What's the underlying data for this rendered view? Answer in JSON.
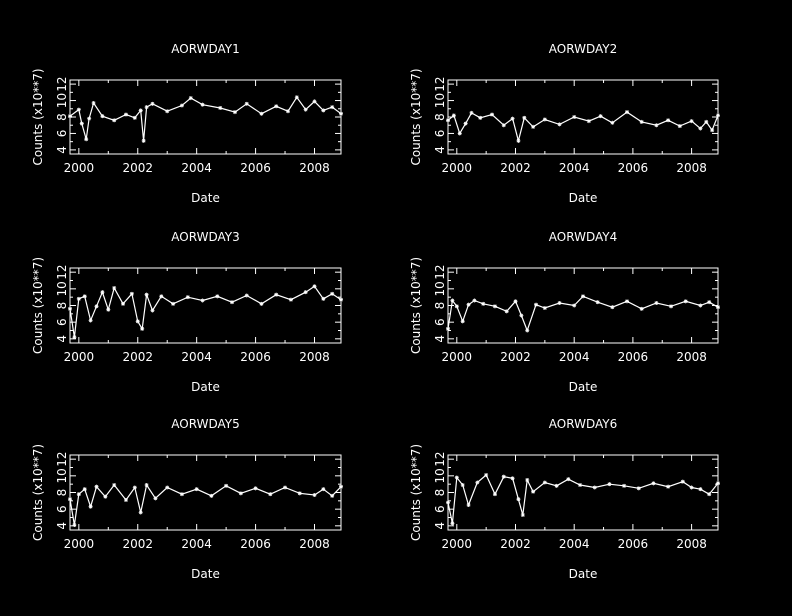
{
  "colors": {
    "background": "#000000",
    "foreground": "#ffffff"
  },
  "chart_data": [
    {
      "type": "line",
      "title": "AORWDAY1",
      "xlabel": "Date",
      "ylabel": "Counts (x10**7)",
      "x_ticks": [
        "2000",
        "2002",
        "2004",
        "2006",
        "2008"
      ],
      "y_ticks": [
        "4",
        "6",
        "8",
        "10",
        "12"
      ],
      "xlim": [
        1999.7,
        2008.9
      ],
      "ylim": [
        3.5,
        12.5
      ],
      "grid": false,
      "x": [
        1999.7,
        2000.0,
        2000.1,
        2000.25,
        2000.35,
        2000.5,
        2000.8,
        2001.2,
        2001.6,
        2001.9,
        2002.1,
        2002.2,
        2002.3,
        2002.5,
        2003.0,
        2003.5,
        2003.8,
        2004.2,
        2004.8,
        2005.3,
        2005.7,
        2006.2,
        2006.7,
        2007.1,
        2007.4,
        2007.7,
        2008.0,
        2008.3,
        2008.6,
        2008.9
      ],
      "values": [
        8.1,
        8.9,
        7.2,
        5.3,
        7.8,
        9.7,
        8.1,
        7.6,
        8.3,
        7.9,
        8.8,
        5.1,
        9.2,
        9.6,
        8.7,
        9.4,
        10.3,
        9.5,
        9.1,
        8.6,
        9.6,
        8.4,
        9.3,
        8.7,
        10.4,
        8.9,
        9.9,
        8.8,
        9.2,
        8.4
      ]
    },
    {
      "type": "line",
      "title": "AORWDAY2",
      "xlabel": "Date",
      "ylabel": "Counts (x10**7)",
      "x_ticks": [
        "2000",
        "2002",
        "2004",
        "2006",
        "2008"
      ],
      "y_ticks": [
        "4",
        "6",
        "8",
        "10",
        "12"
      ],
      "xlim": [
        1999.7,
        2008.9
      ],
      "ylim": [
        3.5,
        12.5
      ],
      "grid": false,
      "x": [
        1999.7,
        1999.9,
        2000.1,
        2000.3,
        2000.5,
        2000.8,
        2001.2,
        2001.6,
        2001.9,
        2002.1,
        2002.3,
        2002.6,
        2003.0,
        2003.5,
        2004.0,
        2004.5,
        2004.9,
        2005.3,
        2005.8,
        2006.3,
        2006.8,
        2007.2,
        2007.6,
        2008.0,
        2008.3,
        2008.5,
        2008.7,
        2008.9
      ],
      "values": [
        7.6,
        8.2,
        6.0,
        7.2,
        8.5,
        7.9,
        8.3,
        7.0,
        7.8,
        5.1,
        7.9,
        6.8,
        7.7,
        7.1,
        8.0,
        7.5,
        8.1,
        7.3,
        8.6,
        7.4,
        7.0,
        7.6,
        6.9,
        7.5,
        6.6,
        7.4,
        6.4,
        8.2
      ]
    },
    {
      "type": "line",
      "title": "AORWDAY3",
      "xlabel": "Date",
      "ylabel": "Counts (x10**7)",
      "x_ticks": [
        "2000",
        "2002",
        "2004",
        "2006",
        "2008"
      ],
      "y_ticks": [
        "4",
        "6",
        "8",
        "10",
        "12"
      ],
      "xlim": [
        1999.7,
        2008.9
      ],
      "ylim": [
        3.5,
        12.5
      ],
      "grid": false,
      "x": [
        1999.7,
        1999.85,
        2000.0,
        2000.2,
        2000.4,
        2000.6,
        2000.8,
        2001.0,
        2001.2,
        2001.5,
        2001.8,
        2002.0,
        2002.15,
        2002.3,
        2002.5,
        2002.8,
        2003.2,
        2003.7,
        2004.2,
        2004.7,
        2005.2,
        2005.7,
        2006.2,
        2006.7,
        2007.2,
        2007.7,
        2008.0,
        2008.3,
        2008.6,
        2008.9
      ],
      "values": [
        7.6,
        4.2,
        8.8,
        9.1,
        6.2,
        7.9,
        9.6,
        7.5,
        10.1,
        8.2,
        9.4,
        6.1,
        5.2,
        9.3,
        7.4,
        9.1,
        8.2,
        9.0,
        8.6,
        9.1,
        8.4,
        9.2,
        8.2,
        9.3,
        8.7,
        9.6,
        10.3,
        8.8,
        9.4,
        8.7
      ]
    },
    {
      "type": "line",
      "title": "AORWDAY4",
      "xlabel": "Date",
      "ylabel": "Counts (x10**7)",
      "x_ticks": [
        "2000",
        "2002",
        "2004",
        "2006",
        "2008"
      ],
      "y_ticks": [
        "4",
        "6",
        "8",
        "10",
        "12"
      ],
      "xlim": [
        1999.7,
        2008.9
      ],
      "ylim": [
        3.5,
        12.5
      ],
      "grid": false,
      "x": [
        1999.7,
        1999.85,
        2000.0,
        2000.2,
        2000.4,
        2000.6,
        2000.9,
        2001.3,
        2001.7,
        2002.0,
        2002.2,
        2002.4,
        2002.7,
        2003.0,
        2003.5,
        2004.0,
        2004.3,
        2004.8,
        2005.3,
        2005.8,
        2006.3,
        2006.8,
        2007.3,
        2007.8,
        2008.3,
        2008.6,
        2008.9
      ],
      "values": [
        5.2,
        8.6,
        7.9,
        6.1,
        8.1,
        8.6,
        8.2,
        7.9,
        7.3,
        8.5,
        6.8,
        5.0,
        8.1,
        7.7,
        8.3,
        8.0,
        9.1,
        8.4,
        7.8,
        8.5,
        7.6,
        8.3,
        7.9,
        8.5,
        8.0,
        8.4,
        7.8
      ]
    },
    {
      "type": "line",
      "title": "AORWDAY5",
      "xlabel": "Date",
      "ylabel": "Counts (x10**7)",
      "x_ticks": [
        "2000",
        "2002",
        "2004",
        "2006",
        "2008"
      ],
      "y_ticks": [
        "4",
        "6",
        "8",
        "10",
        "12"
      ],
      "xlim": [
        1999.7,
        2008.9
      ],
      "ylim": [
        3.5,
        12.5
      ],
      "grid": false,
      "x": [
        1999.7,
        1999.85,
        2000.0,
        2000.2,
        2000.4,
        2000.6,
        2000.9,
        2001.2,
        2001.6,
        2001.9,
        2002.1,
        2002.3,
        2002.6,
        2003.0,
        2003.5,
        2004.0,
        2004.5,
        2005.0,
        2005.5,
        2006.0,
        2006.5,
        2007.0,
        2007.5,
        2008.0,
        2008.3,
        2008.6,
        2008.9
      ],
      "values": [
        7.2,
        4.1,
        7.8,
        8.4,
        6.3,
        8.7,
        7.5,
        8.9,
        7.1,
        8.6,
        5.6,
        8.9,
        7.3,
        8.6,
        7.8,
        8.4,
        7.6,
        8.8,
        7.9,
        8.5,
        7.8,
        8.6,
        7.9,
        7.7,
        8.4,
        7.6,
        8.7
      ]
    },
    {
      "type": "line",
      "title": "AORWDAY6",
      "xlabel": "Date",
      "ylabel": "Counts (x10**7)",
      "x_ticks": [
        "2000",
        "2002",
        "2004",
        "2006",
        "2008"
      ],
      "y_ticks": [
        "4",
        "6",
        "8",
        "10",
        "12"
      ],
      "xlim": [
        1999.7,
        2008.9
      ],
      "ylim": [
        3.5,
        12.5
      ],
      "grid": false,
      "x": [
        1999.7,
        1999.85,
        2000.0,
        2000.2,
        2000.4,
        2000.7,
        2001.0,
        2001.3,
        2001.6,
        2001.9,
        2002.1,
        2002.25,
        2002.4,
        2002.6,
        2003.0,
        2003.4,
        2003.8,
        2004.2,
        2004.7,
        2005.2,
        2005.7,
        2006.2,
        2006.7,
        2007.2,
        2007.7,
        2008.0,
        2008.3,
        2008.6,
        2008.9
      ],
      "values": [
        6.8,
        4.3,
        9.8,
        8.9,
        6.5,
        9.2,
        10.1,
        7.8,
        9.9,
        9.7,
        7.2,
        5.3,
        9.5,
        8.1,
        9.2,
        8.8,
        9.6,
        8.9,
        8.6,
        9.0,
        8.8,
        8.5,
        9.1,
        8.7,
        9.3,
        8.6,
        8.4,
        7.8,
        9.1
      ]
    }
  ]
}
